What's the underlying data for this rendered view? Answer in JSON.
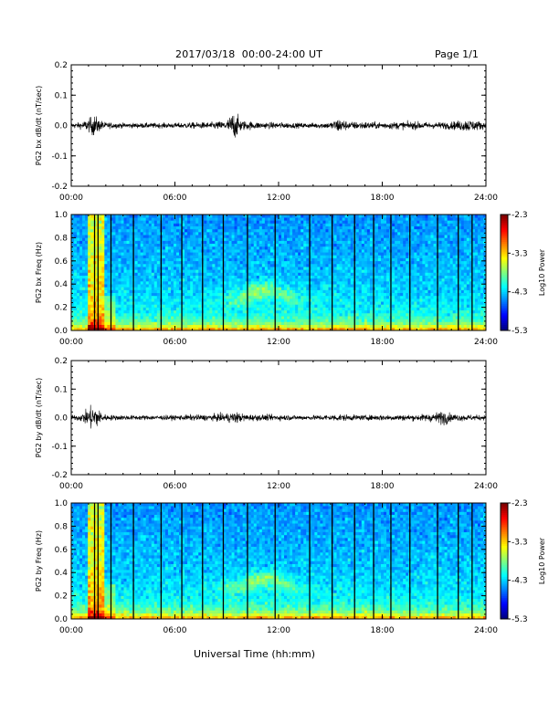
{
  "header": {
    "date_range": "2017/03/18  00:00-24:00 UT",
    "page": "Page 1/1"
  },
  "footer": {
    "xlabel": "Universal Time (hh:mm)"
  },
  "colors": {
    "trace": "#000000",
    "spectrogram_background": "#1a44c8"
  },
  "chart_data": [
    {
      "type": "line",
      "ylabel": "PG2 bx dB/dt (nT/sec)",
      "xlim": [
        "00:00",
        "24:00"
      ],
      "ylim": [
        -0.2,
        0.2
      ],
      "xticks": [
        "00:00",
        "06:00",
        "12:00",
        "18:00",
        "24:00"
      ],
      "yticks": [
        "-0.2",
        "-0.1",
        "0.0",
        "0.1",
        "0.2"
      ],
      "series": [
        {
          "x_hours": [
            0,
            0.5,
            1.0,
            1.3,
            1.6,
            2.0,
            3.0,
            4.0,
            5.0,
            6.0,
            7.0,
            8.0,
            9.0,
            9.4,
            9.6,
            9.8,
            10.0,
            11.0,
            12.0,
            13.0,
            14.0,
            15.0,
            15.5,
            16.0,
            17.0,
            18.0,
            19.0,
            20.0,
            21.0,
            22.0,
            23.0,
            24.0
          ],
          "amplitude": [
            0.008,
            0.01,
            0.02,
            0.035,
            0.02,
            0.01,
            0.008,
            0.008,
            0.008,
            0.008,
            0.01,
            0.01,
            0.015,
            0.045,
            0.035,
            0.02,
            0.015,
            0.01,
            0.01,
            0.008,
            0.008,
            0.01,
            0.025,
            0.012,
            0.012,
            0.01,
            0.012,
            0.012,
            0.01,
            0.012,
            0.02,
            0.01
          ]
        }
      ]
    },
    {
      "type": "heatmap",
      "ylabel": "PG2 bx Freq (Hz)",
      "xlim": [
        "00:00",
        "24:00"
      ],
      "ylim": [
        0.0,
        1.0
      ],
      "xticks": [
        "00:00",
        "06:00",
        "12:00",
        "18:00",
        "24:00"
      ],
      "yticks": [
        "0.0",
        "0.2",
        "0.4",
        "0.6",
        "0.8",
        "1.0"
      ],
      "colorbar": {
        "label": "Log10 Power",
        "range": [
          -5.3,
          -2.3
        ],
        "ticks": [
          "-2.3",
          "-3.3",
          "-4.3",
          "-5.3"
        ]
      },
      "data_gaps_hours": [
        1.35,
        1.55,
        2.3,
        3.6,
        5.2,
        6.4,
        7.6,
        8.8,
        10.2,
        11.8,
        13.8,
        15.1,
        16.4,
        17.5,
        18.5,
        19.6,
        21.2,
        22.4,
        23.2
      ]
    },
    {
      "type": "line",
      "ylabel": "PG2 by dB/dt (nT/sec)",
      "xlim": [
        "00:00",
        "24:00"
      ],
      "ylim": [
        -0.2,
        0.2
      ],
      "xticks": [
        "00:00",
        "06:00",
        "12:00",
        "18:00",
        "24:00"
      ],
      "yticks": [
        "-0.2",
        "-0.1",
        "0.0",
        "0.1",
        "0.2"
      ],
      "series": [
        {
          "x_hours": [
            0,
            0.5,
            1.0,
            1.3,
            1.6,
            2.0,
            3.0,
            4.0,
            5.0,
            6.0,
            7.0,
            8.0,
            9.0,
            9.5,
            10.0,
            11.0,
            12.0,
            13.0,
            14.0,
            15.0,
            15.5,
            16.0,
            17.0,
            18.0,
            19.0,
            20.0,
            21.0,
            21.6,
            22.0,
            23.0,
            24.0
          ],
          "amplitude": [
            0.008,
            0.01,
            0.03,
            0.05,
            0.025,
            0.01,
            0.008,
            0.008,
            0.008,
            0.008,
            0.01,
            0.01,
            0.015,
            0.02,
            0.012,
            0.01,
            0.01,
            0.008,
            0.008,
            0.01,
            0.012,
            0.01,
            0.008,
            0.01,
            0.01,
            0.01,
            0.015,
            0.025,
            0.012,
            0.01,
            0.008
          ]
        }
      ]
    },
    {
      "type": "heatmap",
      "ylabel": "PG2 by Freq (Hz)",
      "xlim": [
        "00:00",
        "24:00"
      ],
      "ylim": [
        0.0,
        1.0
      ],
      "xticks": [
        "00:00",
        "06:00",
        "12:00",
        "18:00",
        "24:00"
      ],
      "yticks": [
        "0.0",
        "0.2",
        "0.4",
        "0.6",
        "0.8",
        "1.0"
      ],
      "colorbar": {
        "label": "Log10 Power",
        "range": [
          -5.3,
          -2.3
        ],
        "ticks": [
          "-2.3",
          "-3.3",
          "-4.3",
          "-5.3"
        ]
      },
      "data_gaps_hours": [
        1.35,
        1.55,
        2.3,
        3.6,
        5.2,
        6.4,
        7.6,
        8.8,
        10.2,
        11.8,
        13.8,
        15.1,
        16.4,
        17.5,
        18.5,
        19.6,
        21.2,
        22.4,
        23.2
      ]
    }
  ]
}
